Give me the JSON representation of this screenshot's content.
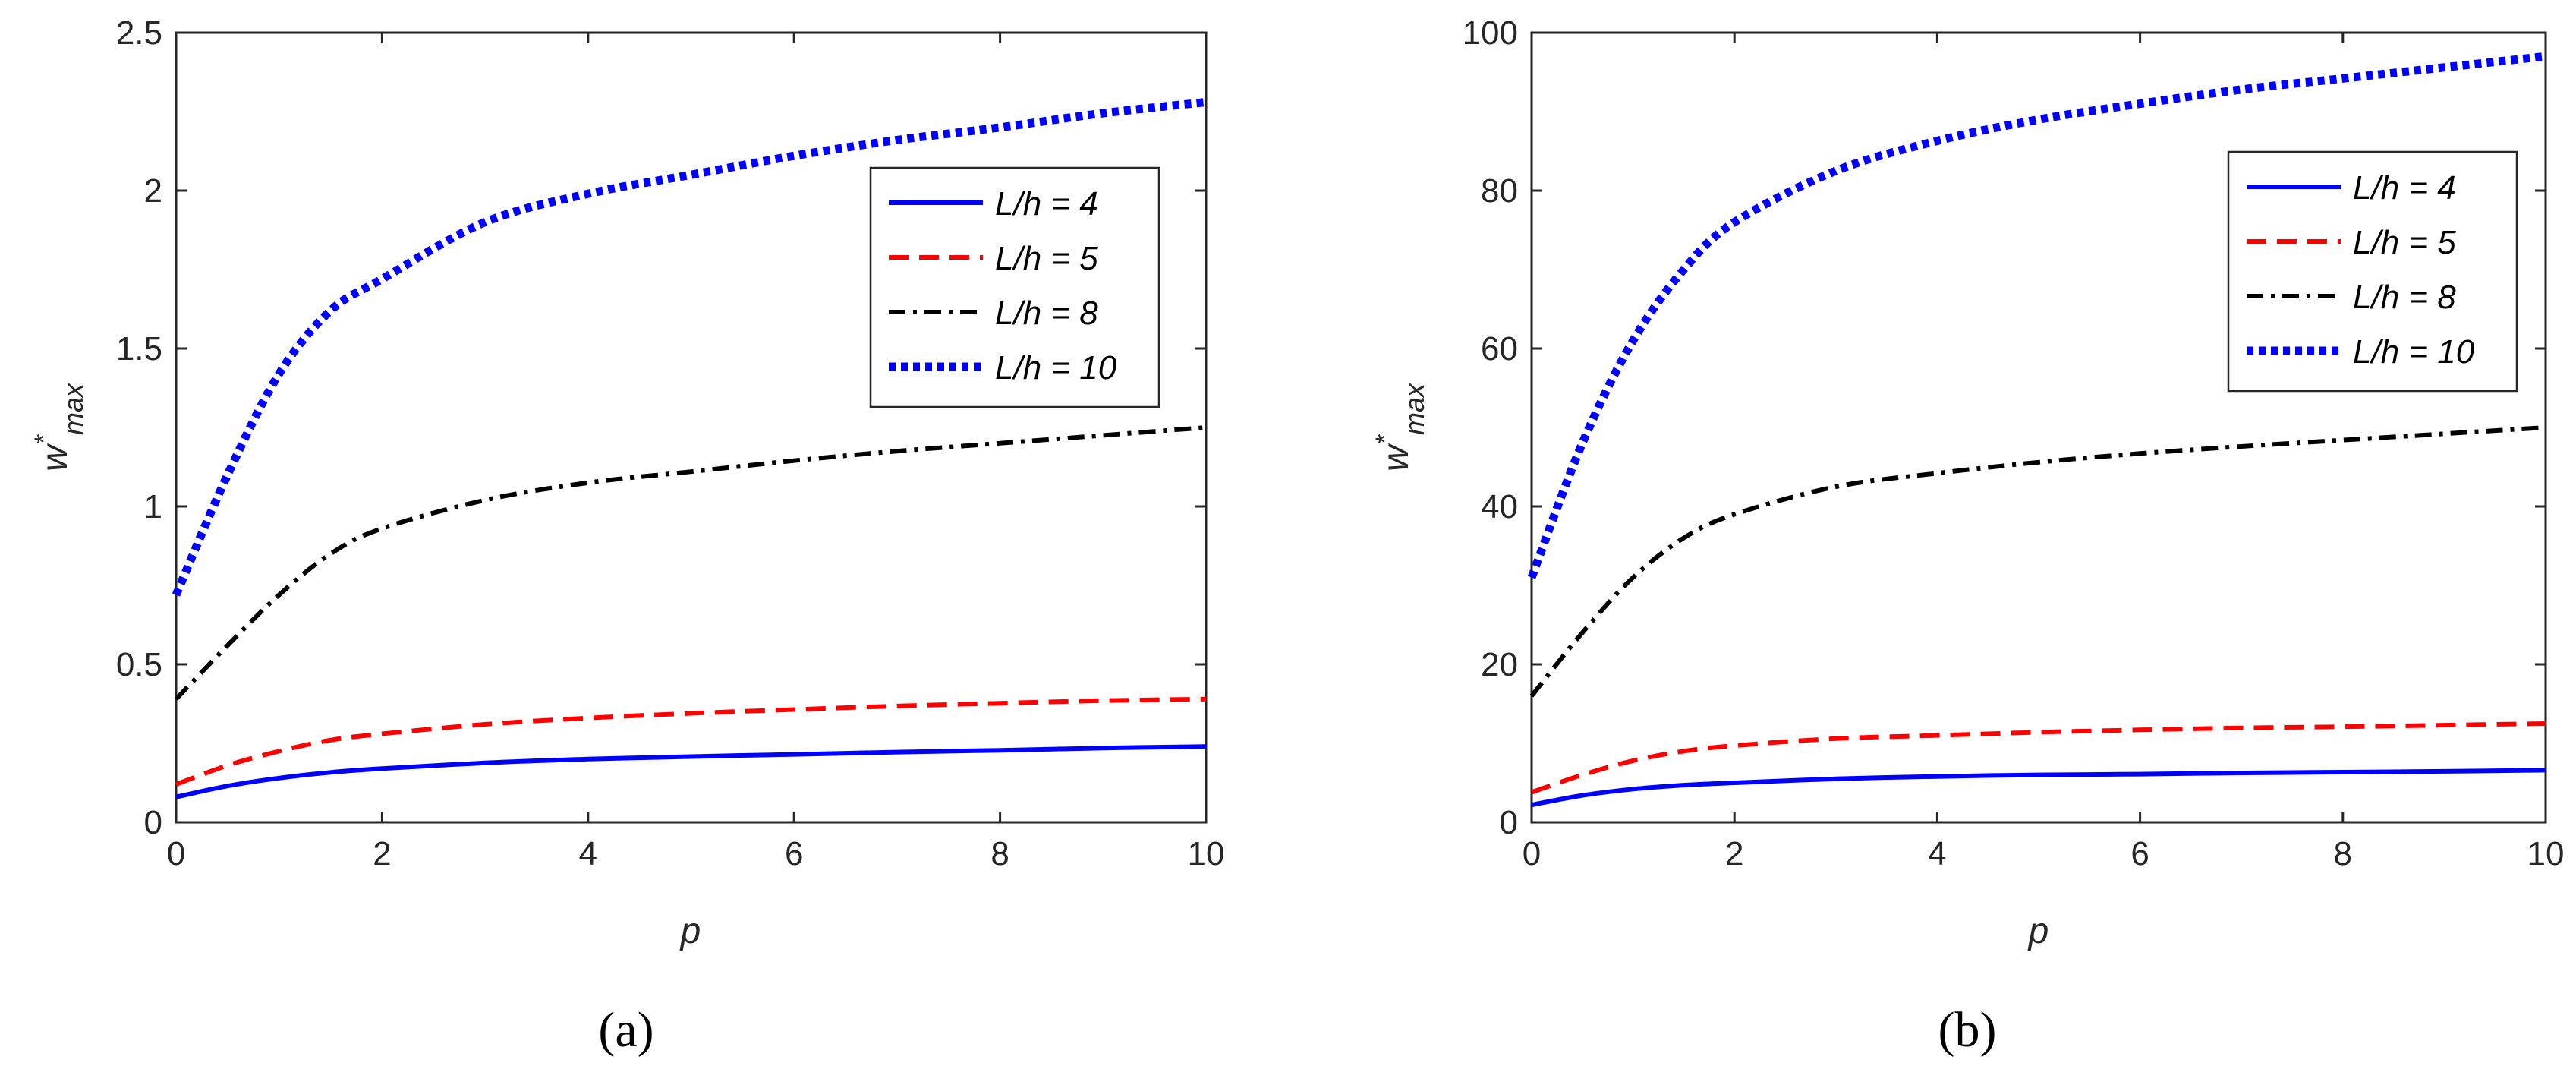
{
  "chart_data": [
    {
      "type": "line",
      "panel_label": "(a)",
      "xlabel": "p",
      "ylabel": "w*max",
      "ylabel_base": "w",
      "ylabel_sup": "*",
      "ylabel_sub": "max",
      "xlim": [
        0,
        10
      ],
      "ylim": [
        0,
        2.5
      ],
      "xticks": [
        "0",
        "2",
        "4",
        "6",
        "8",
        "10"
      ],
      "yticks": [
        "0",
        "0.5",
        "1",
        "1.5",
        "2",
        "2.5"
      ],
      "legend_position": "upper-right",
      "x": [
        0,
        0.5,
        1,
        1.5,
        2,
        3,
        4,
        5,
        6,
        7,
        8,
        9,
        10
      ],
      "series": [
        {
          "name": "L/h = 4",
          "color": "#0000ff",
          "style": "solid",
          "values": [
            0.08,
            0.115,
            0.14,
            0.158,
            0.17,
            0.188,
            0.2,
            0.208,
            0.215,
            0.222,
            0.228,
            0.235,
            0.24
          ]
        },
        {
          "name": "L/h = 5",
          "color": "#ff0000",
          "style": "dashed",
          "values": [
            0.12,
            0.18,
            0.225,
            0.26,
            0.28,
            0.31,
            0.33,
            0.345,
            0.357,
            0.368,
            0.377,
            0.385,
            0.39
          ]
        },
        {
          "name": "L/h = 8",
          "color": "#000000",
          "style": "dashdot",
          "values": [
            0.39,
            0.56,
            0.72,
            0.85,
            0.93,
            1.02,
            1.075,
            1.11,
            1.145,
            1.175,
            1.2,
            1.225,
            1.25
          ]
        },
        {
          "name": "L/h = 10",
          "color": "#0000ff",
          "style": "dotted",
          "values": [
            0.72,
            1.1,
            1.42,
            1.62,
            1.72,
            1.9,
            1.99,
            2.05,
            2.11,
            2.16,
            2.2,
            2.245,
            2.28
          ]
        }
      ]
    },
    {
      "type": "line",
      "panel_label": "(b)",
      "xlabel": "p",
      "ylabel": "w*max",
      "ylabel_base": "w",
      "ylabel_sup": "*",
      "ylabel_sub": "max",
      "xlim": [
        0,
        10
      ],
      "ylim": [
        0,
        100
      ],
      "xticks": [
        "0",
        "2",
        "4",
        "6",
        "8",
        "10"
      ],
      "yticks": [
        "0",
        "20",
        "40",
        "60",
        "80",
        "100"
      ],
      "legend_position": "upper-right",
      "x": [
        0,
        0.5,
        1,
        1.5,
        2,
        3,
        4,
        5,
        6,
        7,
        8,
        9,
        10
      ],
      "series": [
        {
          "name": "L/h = 4",
          "color": "#0000ff",
          "style": "solid",
          "values": [
            2.2,
            3.4,
            4.2,
            4.7,
            5.0,
            5.5,
            5.8,
            6.0,
            6.1,
            6.25,
            6.35,
            6.45,
            6.6
          ]
        },
        {
          "name": "L/h = 5",
          "color": "#ff0000",
          "style": "dashed",
          "values": [
            3.8,
            6.0,
            7.8,
            9.0,
            9.7,
            10.6,
            11.0,
            11.4,
            11.7,
            11.95,
            12.1,
            12.3,
            12.5
          ]
        },
        {
          "name": "L/h = 8",
          "color": "#000000",
          "style": "dashdot",
          "values": [
            16,
            24,
            31,
            36,
            39,
            42.5,
            44.2,
            45.6,
            46.7,
            47.6,
            48.4,
            49.2,
            50
          ]
        },
        {
          "name": "L/h = 10",
          "color": "#0000ff",
          "style": "dotted",
          "values": [
            31,
            48,
            61,
            70,
            76,
            82.5,
            86.3,
            89,
            91,
            92.8,
            94.2,
            95.6,
            97
          ]
        }
      ]
    }
  ]
}
